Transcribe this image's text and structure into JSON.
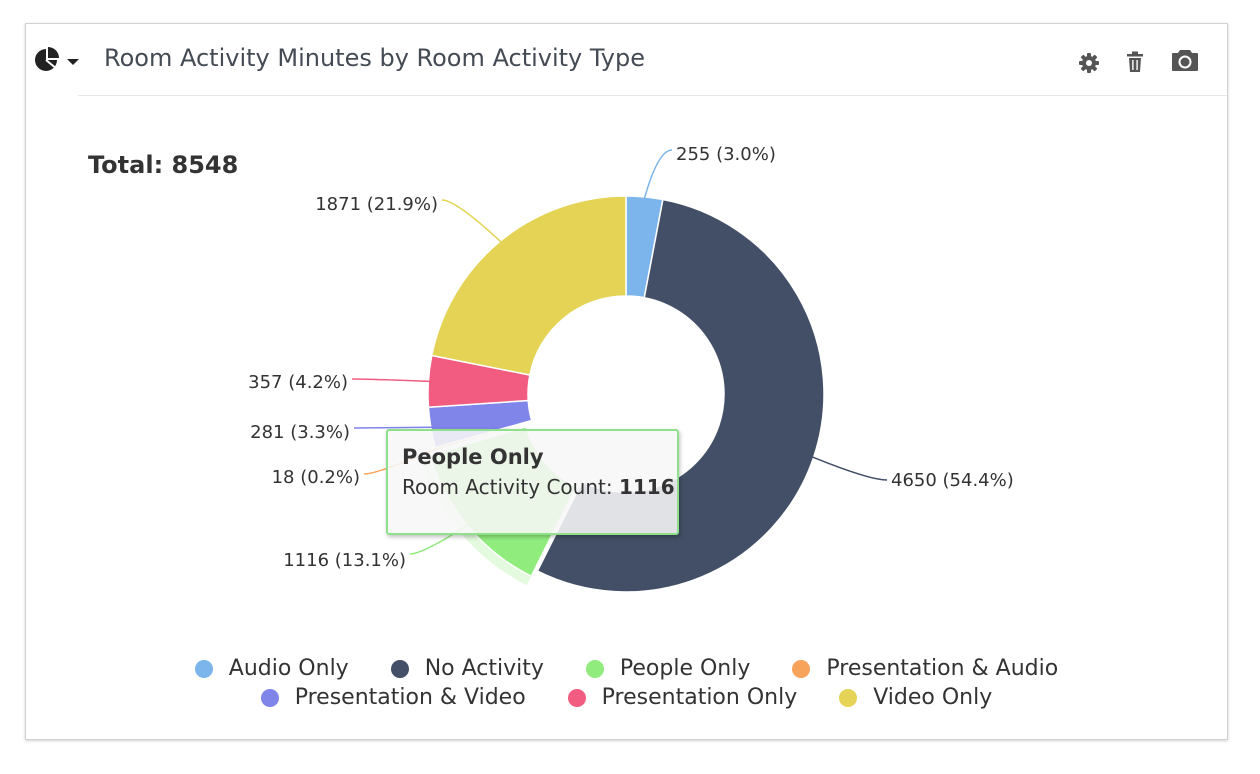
{
  "header": {
    "title": "Room Activity Minutes by Room Activity Type",
    "icons": [
      "pie-chart-icon",
      "caret-down-icon",
      "gear-icon",
      "trash-icon",
      "camera-icon"
    ]
  },
  "total": {
    "text": "Total: 8548"
  },
  "tooltip": {
    "title": "People Only",
    "label": "Room Activity Count: ",
    "value": "1116"
  },
  "chart_data": {
    "type": "pie",
    "variant": "donut",
    "title": "Room Activity Minutes by Room Activity Type",
    "total": 8548,
    "slices": [
      {
        "name": "Audio Only",
        "value": 255,
        "label": "255 (3.0%)",
        "color": "#7cb5ec"
      },
      {
        "name": "No Activity",
        "value": 4650,
        "label": "4650 (54.4%)",
        "color": "#434f66"
      },
      {
        "name": "People Only",
        "value": 1116,
        "label": "1116 (13.1%)",
        "color": "#90ed7d"
      },
      {
        "name": "Presentation & Audio",
        "value": 18,
        "label": "18 (0.2%)",
        "color": "#f7a35c"
      },
      {
        "name": "Presentation & Video",
        "value": 281,
        "label": "281 (3.3%)",
        "color": "#8085e9"
      },
      {
        "name": "Presentation Only",
        "value": 357,
        "label": "357 (4.2%)",
        "color": "#f15c80"
      },
      {
        "name": "Video Only",
        "value": 1871,
        "label": "1871 (21.9%)",
        "color": "#e4d354"
      }
    ],
    "hovered": "People Only",
    "legend": {
      "placement": "bottom-center",
      "rows": [
        [
          "Audio Only",
          "No Activity",
          "People Only",
          "Presentation & Audio"
        ],
        [
          "Presentation & Video",
          "Presentation Only",
          "Video Only"
        ]
      ]
    }
  }
}
